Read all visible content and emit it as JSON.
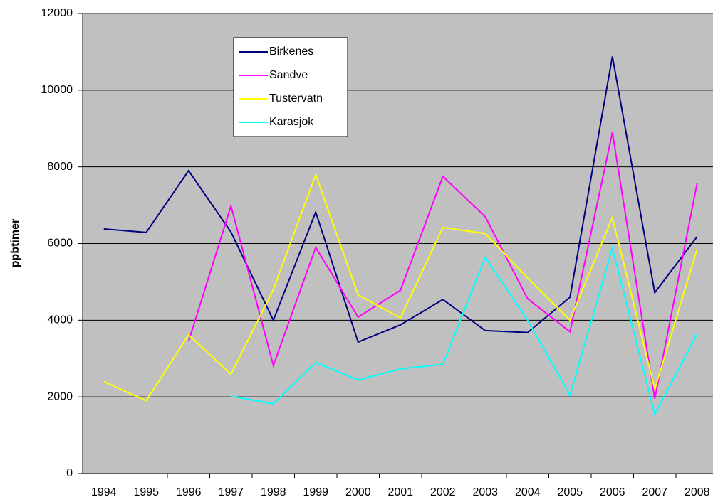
{
  "chart_data": {
    "type": "line",
    "y_label": "ppbtimer",
    "categories": [
      "1994",
      "1995",
      "1996",
      "1997",
      "1998",
      "1999",
      "2000",
      "2001",
      "2002",
      "2003",
      "2004",
      "2005",
      "2006",
      "2007",
      "2008"
    ],
    "series": [
      {
        "name": "Birkenes",
        "color": "#000080",
        "values": [
          6380,
          6290,
          7900,
          6300,
          4000,
          6820,
          3430,
          3880,
          4540,
          3730,
          3680,
          4600,
          10880,
          4720,
          6180
        ]
      },
      {
        "name": "Sandve",
        "color": "#ff00ff",
        "values": [
          null,
          null,
          3450,
          6980,
          2820,
          5900,
          4080,
          4780,
          7750,
          6700,
          4560,
          3700,
          8900,
          1950,
          7580
        ]
      },
      {
        "name": "Tustervatn",
        "color": "#ffff00",
        "values": [
          2400,
          1900,
          3620,
          2590,
          4800,
          7800,
          4660,
          4060,
          6420,
          6260,
          5100,
          4000,
          6680,
          2200,
          5860
        ]
      },
      {
        "name": "Karasjok",
        "color": "#00ffff",
        "values": [
          null,
          null,
          null,
          2020,
          1820,
          2900,
          2440,
          2730,
          2850,
          5640,
          4000,
          2050,
          5880,
          1550,
          3640
        ]
      }
    ],
    "ylim": [
      0,
      12000
    ],
    "yticks": [
      0,
      2000,
      4000,
      6000,
      8000,
      10000,
      12000
    ],
    "grid": true
  }
}
